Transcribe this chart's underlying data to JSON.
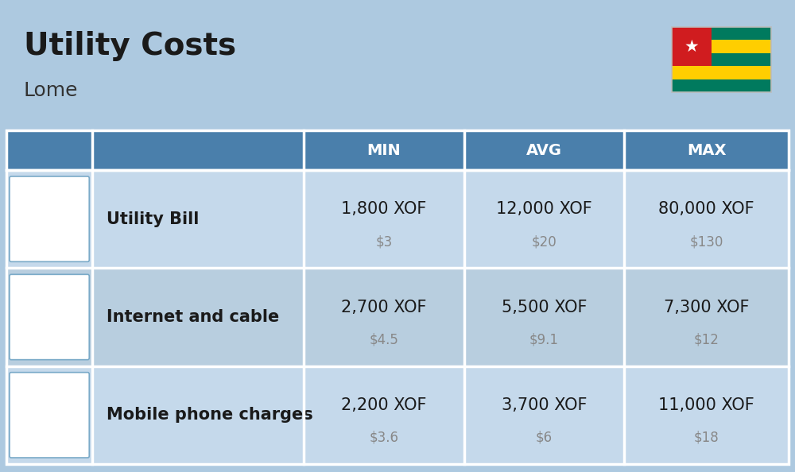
{
  "title": "Utility Costs",
  "subtitle": "Lome",
  "background_color": "#adc9e0",
  "header_bg_color": "#4a7fab",
  "header_text_color": "#ffffff",
  "row_bg_color_1": "#c5d9eb",
  "row_bg_color_2": "#b8cedf",
  "table_border_color": "#ffffff",
  "col_headers": [
    "MIN",
    "AVG",
    "MAX"
  ],
  "rows": [
    {
      "label": "Utility Bill",
      "values_xof": [
        "1,800 XOF",
        "12,000 XOF",
        "80,000 XOF"
      ],
      "values_usd": [
        "$3",
        "$20",
        "$130"
      ]
    },
    {
      "label": "Internet and cable",
      "values_xof": [
        "2,700 XOF",
        "5,500 XOF",
        "7,300 XOF"
      ],
      "values_usd": [
        "$4.5",
        "$9.1",
        "$12"
      ]
    },
    {
      "label": "Mobile phone charges",
      "values_xof": [
        "2,200 XOF",
        "3,700 XOF",
        "11,000 XOF"
      ],
      "values_usd": [
        "$3.6",
        "$6",
        "$18"
      ]
    }
  ],
  "flag_green": "#007a5e",
  "flag_yellow": "#ffce00",
  "flag_red": "#d01c1f",
  "title_fontsize": 28,
  "subtitle_fontsize": 18,
  "header_fontsize": 14,
  "cell_fontsize": 15,
  "cell_sub_fontsize": 12,
  "label_fontsize": 15
}
